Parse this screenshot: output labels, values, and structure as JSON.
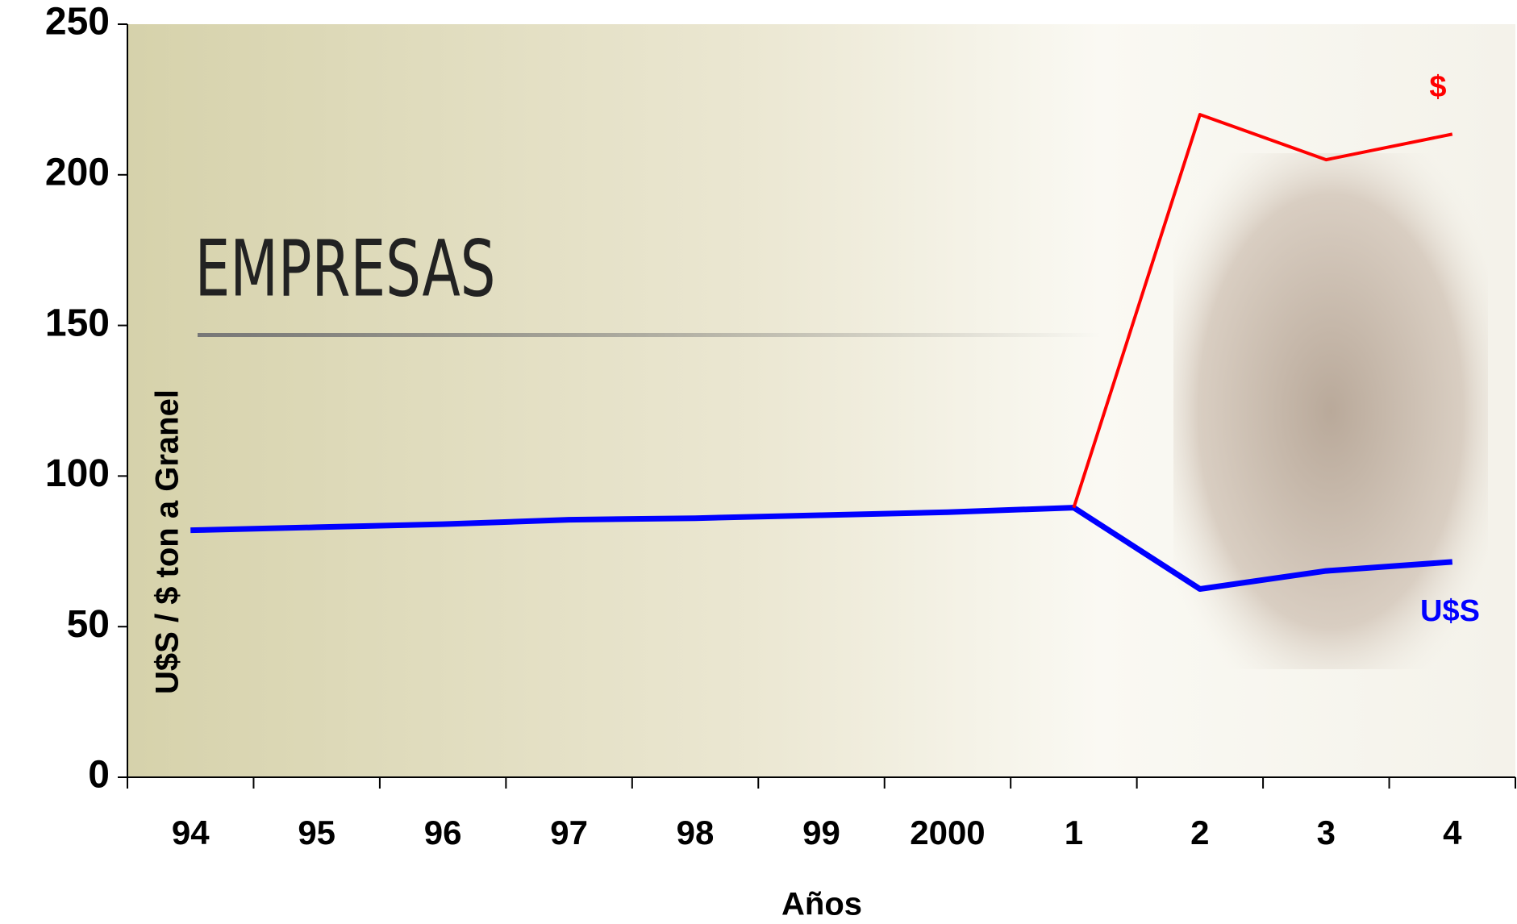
{
  "chart_data": {
    "type": "line",
    "background_text": "EMPRESAS",
    "xlabel": "Años",
    "ylabel": "U$S / $ ton a Granel",
    "categories": [
      "94",
      "95",
      "96",
      "97",
      "98",
      "99",
      "2000",
      "1",
      "2",
      "3",
      "4"
    ],
    "series": [
      {
        "name": "U$S",
        "color": "#0000ff",
        "values": [
          82,
          83,
          84,
          85.5,
          86,
          87,
          88,
          89.5,
          62.5,
          68.5,
          71.5
        ]
      },
      {
        "name": "$",
        "color": "#ff0000",
        "values": [
          null,
          null,
          null,
          null,
          null,
          null,
          null,
          89.5,
          220,
          205,
          213.5
        ]
      }
    ],
    "ylim": [
      0,
      250
    ],
    "yticks": [
      0,
      50,
      100,
      150,
      200,
      250
    ],
    "grid": false
  }
}
